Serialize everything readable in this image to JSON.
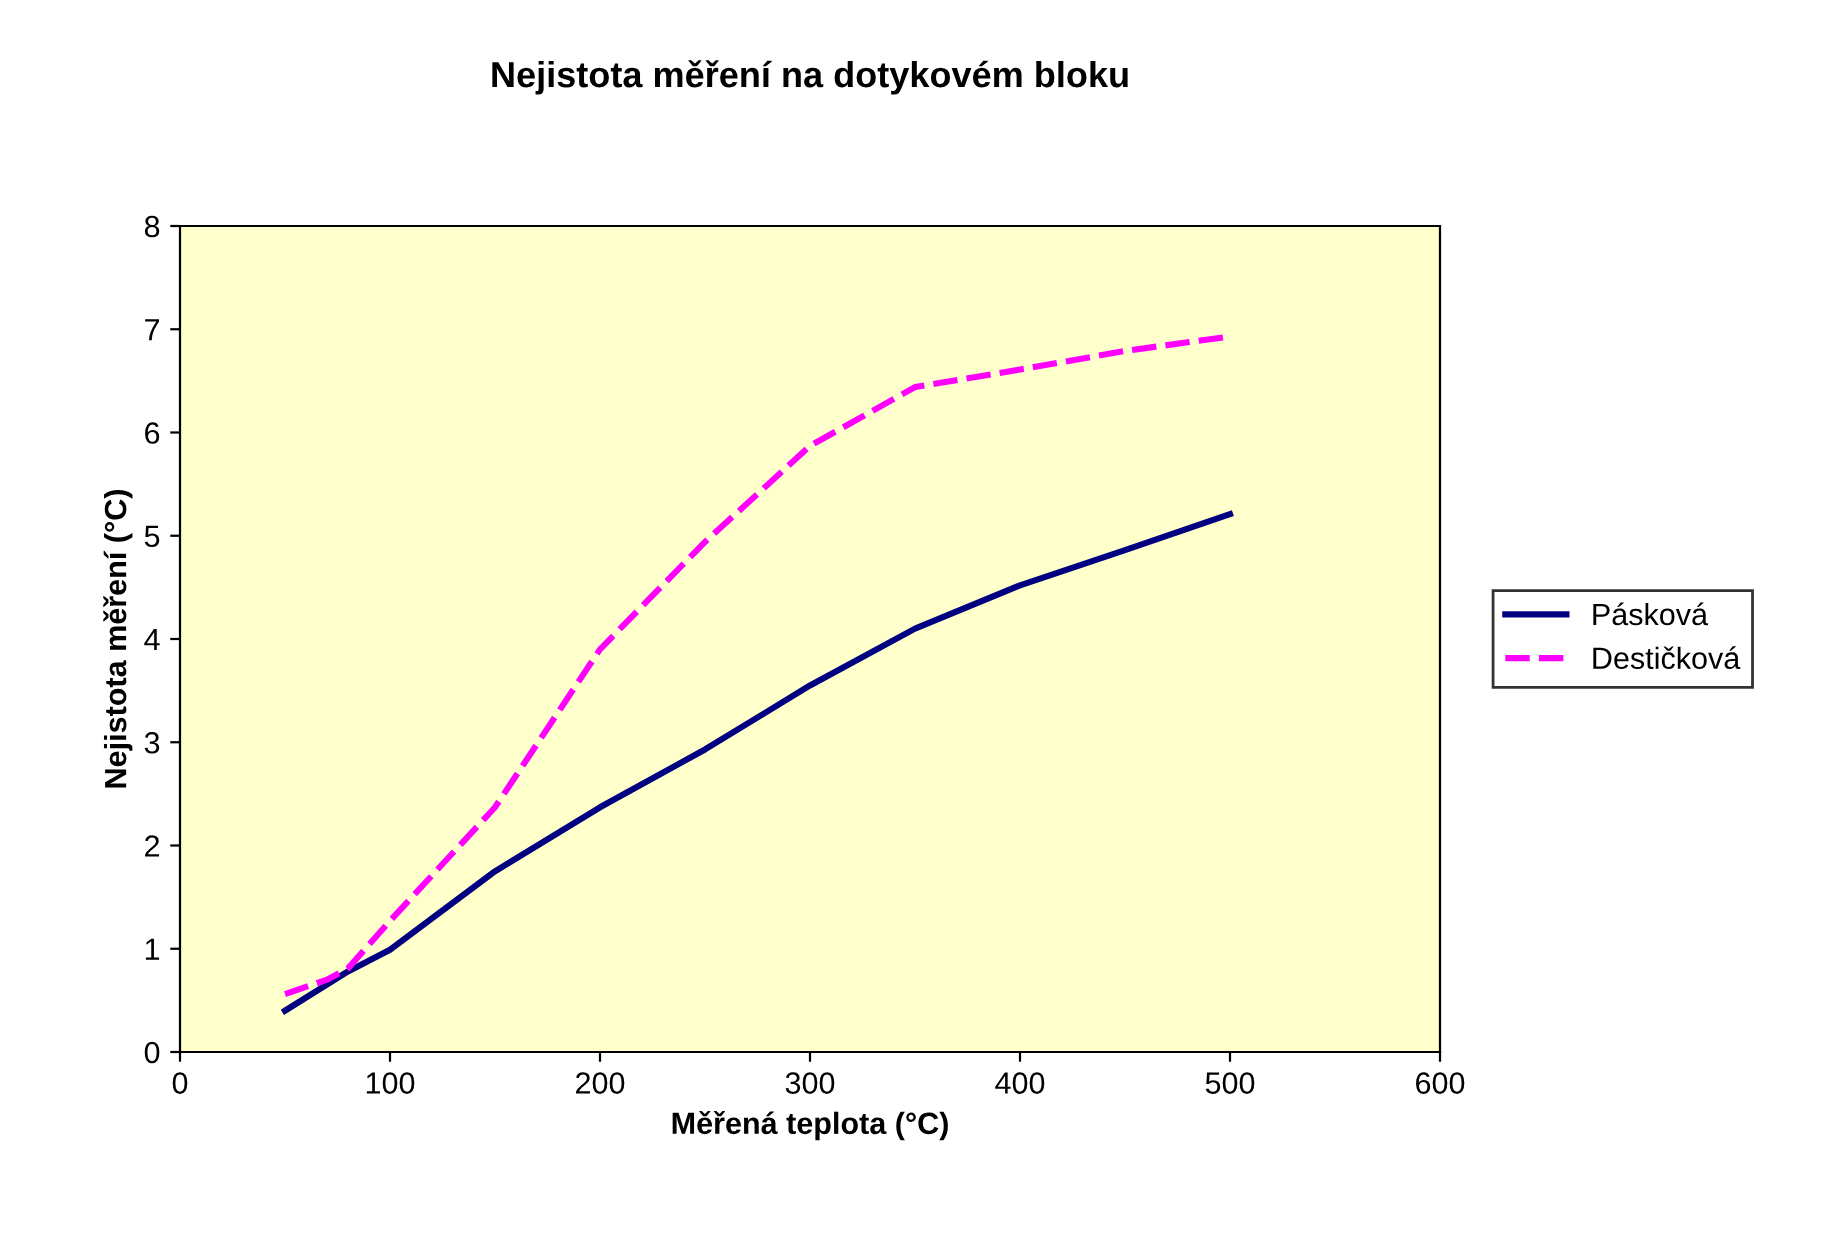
{
  "chart_data": {
    "type": "line",
    "title": "Nejistota měření na dotykovém bloku",
    "xlabel": "Měřená teplota (°C)",
    "ylabel": "Nejistota měření (°C)",
    "xlim": [
      0,
      600
    ],
    "xticks": [
      0,
      100,
      200,
      300,
      400,
      500,
      600
    ],
    "ylim": [
      0,
      8
    ],
    "yticks": [
      0,
      1,
      2,
      3,
      4,
      5,
      6,
      7,
      8
    ],
    "grid": false,
    "legend": "right",
    "series": [
      {
        "name": "Pásková",
        "color": "#000080",
        "line_style": "solid",
        "x": [
          50,
          80,
          100,
          150,
          200,
          250,
          300,
          350,
          400,
          450,
          500
        ],
        "values": [
          0.4,
          0.78,
          0.99,
          1.75,
          2.37,
          2.93,
          3.55,
          4.1,
          4.52,
          4.86,
          5.21
        ]
      },
      {
        "name": "Destičková",
        "color": "#ff00ff",
        "line_style": "dashed",
        "x": [
          50,
          70,
          80,
          100,
          150,
          200,
          250,
          300,
          350,
          400,
          450,
          500
        ],
        "values": [
          0.56,
          0.7,
          0.81,
          1.27,
          2.37,
          3.9,
          4.94,
          5.87,
          6.44,
          6.61,
          6.79,
          6.93
        ]
      }
    ]
  }
}
